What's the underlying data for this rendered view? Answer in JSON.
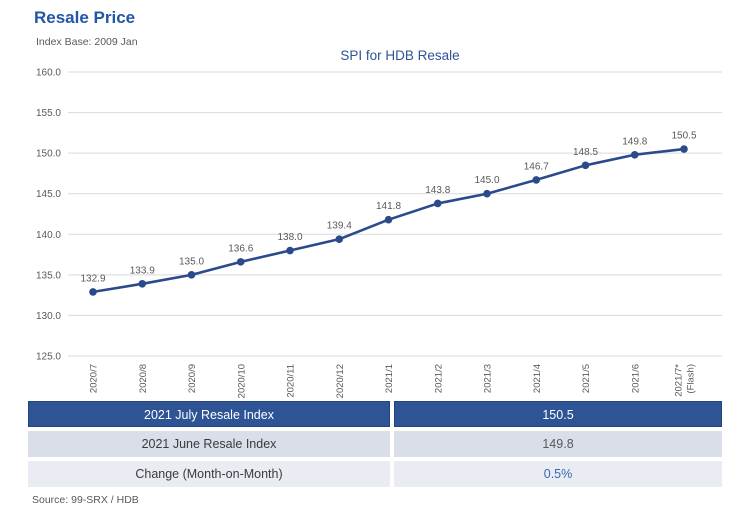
{
  "header": {
    "title": "Resale Price",
    "subtitle": "Index Base: 2009 Jan"
  },
  "chart_data": {
    "type": "line",
    "title": "SPI for HDB Resale",
    "categories": [
      "2020/7",
      "2020/8",
      "2020/9",
      "2020/10",
      "2020/11",
      "2020/12",
      "2021/1",
      "2021/2",
      "2021/3",
      "2021/4",
      "2021/5",
      "2021/6",
      "2021/7*\n(Flash)"
    ],
    "values": [
      132.9,
      133.9,
      135.0,
      136.6,
      138.0,
      139.4,
      141.8,
      143.8,
      145.0,
      146.7,
      148.5,
      149.8,
      150.5
    ],
    "ylim": [
      125.0,
      160.0
    ],
    "ytick_step": 5.0,
    "grid": true,
    "legend": "none",
    "data_labels": true,
    "marker": "circle"
  },
  "table": {
    "rows": [
      {
        "label": "2021 July Resale Index",
        "value": "150.5"
      },
      {
        "label": "2021 June Resale Index",
        "value": "149.8"
      },
      {
        "label": "Change (Month-on-Month)",
        "value": "0.5%"
      }
    ]
  },
  "footer": {
    "source": "Source: 99-SRX / HDB"
  },
  "colors": {
    "accent_blue": "#2156a8",
    "chart_title_blue": "#2e5496",
    "line": "#2b4a8b",
    "grid": "#d9d9d9",
    "label_gray": "#595959",
    "table_header_bg": "#2f5496",
    "row_even_bg": "#d9dee9",
    "row_odd_bg": "#eaecf3",
    "value_blue": "#3a66b0"
  }
}
